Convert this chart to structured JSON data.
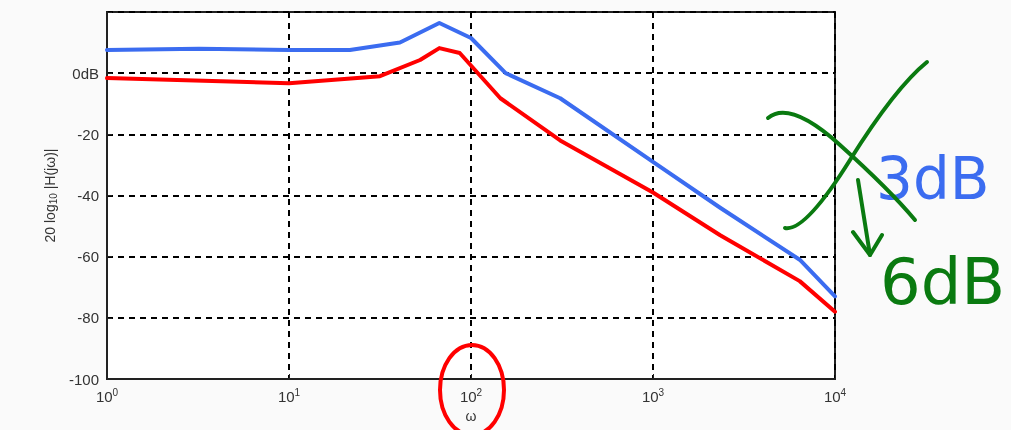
{
  "chart_data": {
    "type": "line",
    "xlabel": "ω",
    "ylabel": "20 log$_{10}$ |H(jω)|",
    "x": [
      1,
      3.2,
      10,
      21.6,
      40.7,
      67,
      100,
      155,
      309,
      1000,
      2340,
      6400,
      10000
    ],
    "series": [
      {
        "color": "#3b6cf0",
        "values": [
          7.6,
          8,
          7.6,
          7.6,
          10,
          16.4,
          11.5,
          0,
          -8.2,
          -29,
          -44,
          -61,
          -73
        ]
      },
      {
        "color": "#ff0000",
        "x": [
          1,
          10,
          31.6,
          52.5,
          67,
          86.7,
          145,
          309,
          1000,
          2340,
          6400,
          10000
        ],
        "values": [
          -1.6,
          -3.3,
          -1,
          4.3,
          8.2,
          6.6,
          -8.2,
          -22,
          -39,
          -53,
          -68,
          -78
        ]
      }
    ],
    "log": "x",
    "xlim": [
      1,
      10000
    ],
    "ylim": [
      -100,
      20
    ],
    "xticks": [
      {
        "value": 1,
        "label": "10$^{0}$"
      },
      {
        "value": 10,
        "label": "10$^{1}$"
      },
      {
        "value": 100,
        "label": "10$^{2}$"
      },
      {
        "value": 1000,
        "label": "10$^{3}$"
      },
      {
        "value": 10000,
        "label": "10$^{4}$"
      }
    ],
    "yticks": [
      -100,
      -80,
      -60,
      -40,
      -20,
      {
        "value": 0,
        "label": "0dB"
      },
      {
        "value": 20,
        "label": null
      }
    ],
    "grid": true,
    "marker": "none",
    "line_style": "solid",
    "annotations": [
      "3dB",
      "6dB"
    ]
  }
}
